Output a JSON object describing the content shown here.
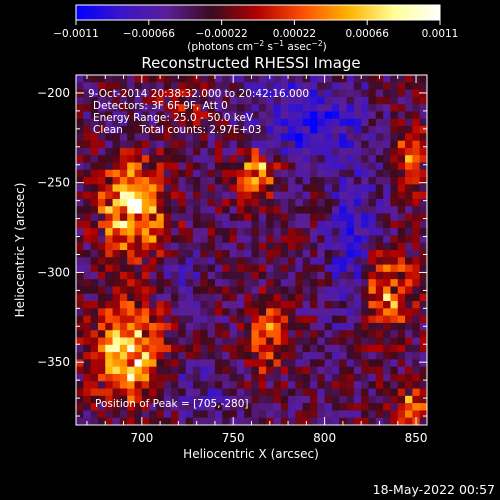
{
  "chart_data": {
    "type": "heatmap",
    "title": "Reconstructed RHESSI Image",
    "xlabel": "Heliocentric X (arcsec)",
    "ylabel": "Heliocentric Y (arcsec)",
    "xlim": [
      664,
      856
    ],
    "ylim": [
      -385,
      -190
    ],
    "x_ticks": [
      700,
      750,
      800,
      850
    ],
    "x_tick_labels": [
      "700",
      "750",
      "800",
      "850"
    ],
    "y_ticks": [
      -200,
      -250,
      -300,
      -350
    ],
    "y_tick_labels": [
      "−200",
      "−250",
      "−300",
      "−350"
    ],
    "colorbar": {
      "min": -0.0011,
      "max": 0.0011,
      "ticks": [
        -0.0011,
        -0.00066,
        -0.00022,
        0.00022,
        0.00066,
        0.0011
      ],
      "tick_labels": [
        "−0.0011",
        "−0.00066",
        "−0.00022",
        "0.00022",
        "0.00066",
        "0.0011"
      ],
      "unit_label_parts": [
        "(photons cm",
        "−2",
        " s",
        "−1",
        " asec",
        "−2",
        ")"
      ],
      "colormap_stops": [
        "#0000ff",
        "#3a14c8",
        "#5a1e96",
        "#3a0a1e",
        "#b40000",
        "#ff5000",
        "#ffb400",
        "#ffff96",
        "#ffffff"
      ]
    },
    "annotations": {
      "time_range": "9-Oct-2014 20:38:32.000 to 20:42:16.000",
      "detectors": "Detectors: 3F 6F 9F, Att 0",
      "energy_range": "Energy Range: 25.0 - 50.0 keV",
      "algorithm": "Clean     Total counts: 2.97E+03",
      "peak_position": "Position of Peak = [705,-280]"
    },
    "peak": {
      "x": 705,
      "y": -280
    },
    "bright_regions": [
      {
        "x": 695,
        "y": -265,
        "sx": 12,
        "sy": 18,
        "value": 0.0011
      },
      {
        "x": 692,
        "y": -345,
        "sx": 13,
        "sy": 18,
        "value": 0.00105
      },
      {
        "x": 762,
        "y": -245,
        "sx": 9,
        "sy": 10,
        "value": 0.0008
      },
      {
        "x": 768,
        "y": -335,
        "sx": 7,
        "sy": 13,
        "value": 0.0007
      },
      {
        "x": 835,
        "y": -310,
        "sx": 10,
        "sy": 16,
        "value": 0.00075
      },
      {
        "x": 848,
        "y": -235,
        "sx": 6,
        "sy": 14,
        "value": 0.0006
      },
      {
        "x": 850,
        "y": -375,
        "sx": 8,
        "sy": 8,
        "value": 0.00065
      },
      {
        "x": 725,
        "y": -210,
        "sx": 10,
        "sy": 8,
        "value": 0.00035
      }
    ],
    "dark_regions": [
      {
        "x": 790,
        "y": -215,
        "sx": 22,
        "sy": 18,
        "value": -0.0009
      },
      {
        "x": 815,
        "y": -285,
        "sx": 10,
        "sy": 30,
        "value": -0.0008
      },
      {
        "x": 722,
        "y": -300,
        "sx": 9,
        "sy": 10,
        "value": -0.0006
      },
      {
        "x": 730,
        "y": -365,
        "sx": 12,
        "sy": 10,
        "value": -0.0006
      },
      {
        "x": 695,
        "y": -220,
        "sx": 10,
        "sy": 8,
        "value": -0.0005
      }
    ],
    "grid": false
  },
  "footer": {
    "date": "18-May-2022 00:57"
  }
}
